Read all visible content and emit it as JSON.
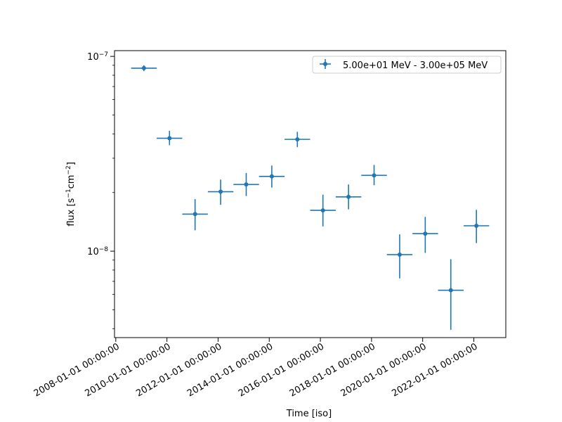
{
  "chart_data": {
    "type": "scatter",
    "title": "",
    "xlabel": "Time [iso]",
    "ylabel": "flux [s⁻¹cm⁻²]",
    "x_tick_labels": [
      "2008-01-01 00:00:00",
      "2010-01-01 00:00:00",
      "2012-01-01 00:00:00",
      "2014-01-01 00:00:00",
      "2016-01-01 00:00:00",
      "2018-01-01 00:00:00",
      "2020-01-01 00:00:00",
      "2022-01-01 00:00:00"
    ],
    "x_tick_years": [
      2008,
      2010,
      2012,
      2014,
      2016,
      2018,
      2020,
      2022
    ],
    "xlim_years": [
      2007.95,
      2023.25
    ],
    "y_scale": "log",
    "ylim": [
      3.6e-09,
      1.07e-07
    ],
    "y_major_ticks": [
      {
        "value": 1e-08,
        "base": "10",
        "exp": "−8"
      },
      {
        "value": 1e-07,
        "base": "10",
        "exp": "−7"
      }
    ],
    "y_minor_ticks": [
      4e-09,
      5e-09,
      6e-09,
      7e-09,
      8e-09,
      9e-09,
      2e-08,
      3e-08,
      4e-08,
      5e-08,
      6e-08,
      7e-08,
      8e-08,
      9e-08
    ],
    "legend": {
      "label": "5.00e+01 MeV - 3.00e+05 MeV",
      "position": "top-right"
    },
    "series": [
      {
        "name": "5.00e+01 MeV - 3.00e+05 MeV",
        "color": "#1f77b4",
        "points": [
          {
            "x": 2009.1,
            "xerr": 0.5,
            "y": 8.7e-08,
            "ylo": 8.4e-08,
            "yhi": 9e-08
          },
          {
            "x": 2010.1,
            "xerr": 0.5,
            "y": 3.8e-08,
            "ylo": 3.5e-08,
            "yhi": 4.15e-08
          },
          {
            "x": 2011.1,
            "xerr": 0.5,
            "y": 1.55e-08,
            "ylo": 1.28e-08,
            "yhi": 1.85e-08
          },
          {
            "x": 2012.1,
            "xerr": 0.5,
            "y": 2.02e-08,
            "ylo": 1.73e-08,
            "yhi": 2.33e-08
          },
          {
            "x": 2013.1,
            "xerr": 0.5,
            "y": 2.2e-08,
            "ylo": 1.92e-08,
            "yhi": 2.52e-08
          },
          {
            "x": 2014.1,
            "xerr": 0.5,
            "y": 2.42e-08,
            "ylo": 2.12e-08,
            "yhi": 2.75e-08
          },
          {
            "x": 2015.1,
            "xerr": 0.5,
            "y": 3.75e-08,
            "ylo": 3.42e-08,
            "yhi": 4.1e-08
          },
          {
            "x": 2016.1,
            "xerr": 0.5,
            "y": 1.62e-08,
            "ylo": 1.34e-08,
            "yhi": 1.95e-08
          },
          {
            "x": 2017.1,
            "xerr": 0.5,
            "y": 1.9e-08,
            "ylo": 1.64e-08,
            "yhi": 2.2e-08
          },
          {
            "x": 2018.1,
            "xerr": 0.5,
            "y": 2.45e-08,
            "ylo": 2.18e-08,
            "yhi": 2.77e-08
          },
          {
            "x": 2019.1,
            "xerr": 0.5,
            "y": 9.6e-09,
            "ylo": 7.25e-09,
            "yhi": 1.22e-08
          },
          {
            "x": 2020.1,
            "xerr": 0.5,
            "y": 1.23e-08,
            "ylo": 9.8e-09,
            "yhi": 1.5e-08
          },
          {
            "x": 2021.1,
            "xerr": 0.5,
            "y": 6.3e-09,
            "ylo": 3.95e-09,
            "yhi": 9.1e-09
          },
          {
            "x": 2022.1,
            "xerr": 0.5,
            "y": 1.35e-08,
            "ylo": 1.1e-08,
            "yhi": 1.63e-08
          }
        ]
      }
    ]
  }
}
